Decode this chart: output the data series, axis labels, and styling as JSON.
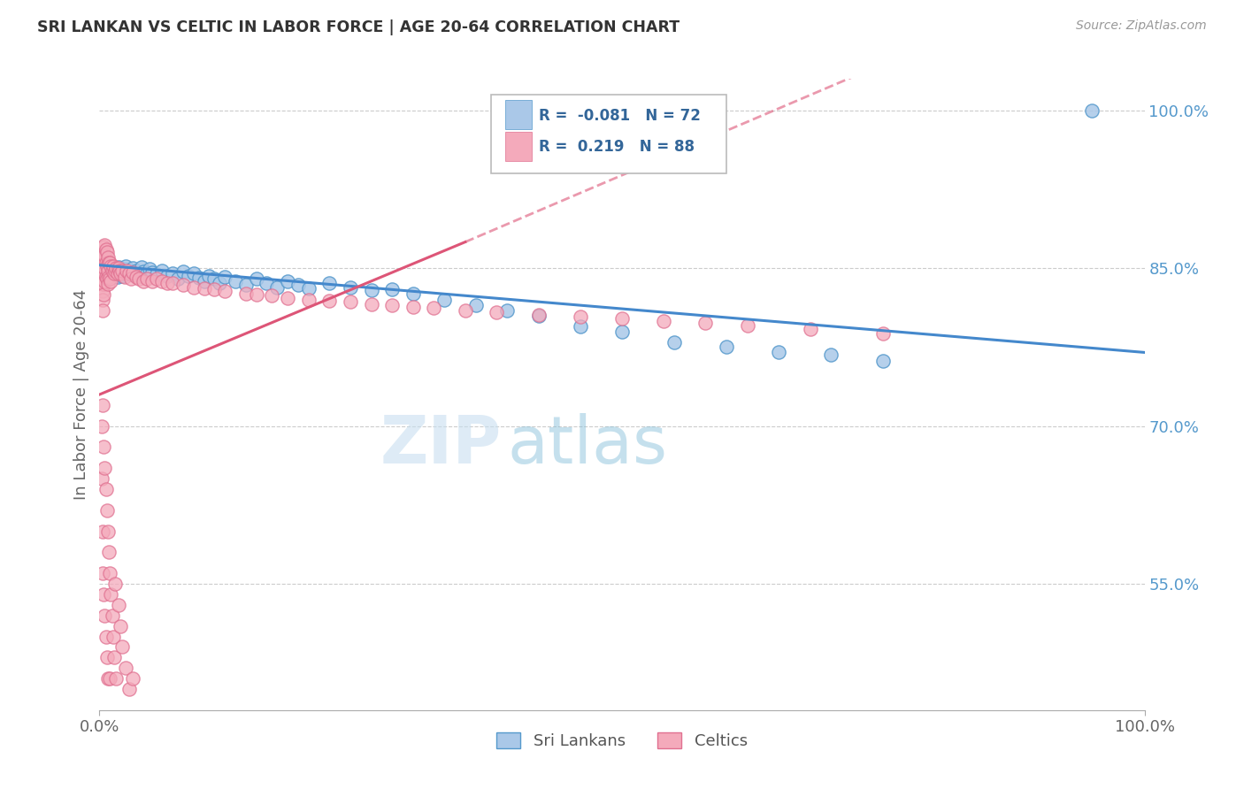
{
  "title": "SRI LANKAN VS CELTIC IN LABOR FORCE | AGE 20-64 CORRELATION CHART",
  "source_text": "Source: ZipAtlas.com",
  "ylabel": "In Labor Force | Age 20-64",
  "xlim": [
    0.0,
    1.0
  ],
  "ylim": [
    0.43,
    1.03
  ],
  "yticks": [
    0.55,
    0.7,
    0.85,
    1.0
  ],
  "ytick_labels": [
    "55.0%",
    "70.0%",
    "85.0%",
    "100.0%"
  ],
  "xticks": [
    0.0,
    1.0
  ],
  "xtick_labels": [
    "0.0%",
    "100.0%"
  ],
  "sri_lankan_R": -0.081,
  "sri_lankan_N": 72,
  "celtic_R": 0.219,
  "celtic_N": 88,
  "legend_label_1": "Sri Lankans",
  "legend_label_2": "Celtics",
  "color_sri_lankan_fill": "#aac8e8",
  "color_sri_lankan_edge": "#5599cc",
  "color_celtic_fill": "#f4aabb",
  "color_celtic_edge": "#e07090",
  "color_sri_line": "#4488cc",
  "color_cel_line": "#dd5577",
  "background_color": "#ffffff",
  "sri_lankan_x": [
    0.003,
    0.003,
    0.004,
    0.004,
    0.005,
    0.005,
    0.006,
    0.007,
    0.008,
    0.009,
    0.01,
    0.01,
    0.011,
    0.012,
    0.013,
    0.015,
    0.016,
    0.017,
    0.018,
    0.02,
    0.022,
    0.024,
    0.025,
    0.027,
    0.03,
    0.032,
    0.035,
    0.038,
    0.04,
    0.042,
    0.045,
    0.048,
    0.05,
    0.055,
    0.06,
    0.065,
    0.07,
    0.075,
    0.08,
    0.085,
    0.09,
    0.095,
    0.1,
    0.105,
    0.11,
    0.115,
    0.12,
    0.13,
    0.14,
    0.15,
    0.16,
    0.17,
    0.18,
    0.19,
    0.2,
    0.22,
    0.24,
    0.26,
    0.28,
    0.3,
    0.33,
    0.36,
    0.39,
    0.42,
    0.46,
    0.5,
    0.55,
    0.6,
    0.65,
    0.7,
    0.75,
    0.95
  ],
  "sri_lankan_y": [
    0.845,
    0.85,
    0.84,
    0.855,
    0.845,
    0.85,
    0.852,
    0.848,
    0.843,
    0.851,
    0.846,
    0.853,
    0.849,
    0.844,
    0.85,
    0.845,
    0.848,
    0.842,
    0.851,
    0.847,
    0.843,
    0.849,
    0.852,
    0.846,
    0.844,
    0.85,
    0.848,
    0.843,
    0.851,
    0.847,
    0.845,
    0.849,
    0.846,
    0.844,
    0.848,
    0.843,
    0.845,
    0.84,
    0.847,
    0.843,
    0.845,
    0.841,
    0.838,
    0.843,
    0.84,
    0.836,
    0.842,
    0.838,
    0.834,
    0.84,
    0.836,
    0.832,
    0.838,
    0.834,
    0.831,
    0.836,
    0.832,
    0.829,
    0.83,
    0.826,
    0.82,
    0.815,
    0.81,
    0.805,
    0.795,
    0.79,
    0.78,
    0.775,
    0.77,
    0.768,
    0.762,
    1.0
  ],
  "celtic_x": [
    0.002,
    0.002,
    0.002,
    0.002,
    0.002,
    0.003,
    0.003,
    0.003,
    0.003,
    0.003,
    0.003,
    0.003,
    0.003,
    0.004,
    0.004,
    0.004,
    0.004,
    0.004,
    0.004,
    0.005,
    0.005,
    0.005,
    0.005,
    0.006,
    0.006,
    0.006,
    0.007,
    0.007,
    0.007,
    0.008,
    0.008,
    0.008,
    0.009,
    0.009,
    0.01,
    0.01,
    0.011,
    0.011,
    0.012,
    0.013,
    0.014,
    0.015,
    0.016,
    0.017,
    0.018,
    0.019,
    0.02,
    0.022,
    0.024,
    0.026,
    0.028,
    0.03,
    0.032,
    0.035,
    0.038,
    0.042,
    0.045,
    0.05,
    0.055,
    0.06,
    0.065,
    0.07,
    0.08,
    0.09,
    0.1,
    0.11,
    0.12,
    0.14,
    0.15,
    0.165,
    0.18,
    0.2,
    0.22,
    0.24,
    0.26,
    0.28,
    0.3,
    0.32,
    0.35,
    0.38,
    0.42,
    0.46,
    0.5,
    0.54,
    0.58,
    0.62,
    0.68,
    0.75
  ],
  "celtic_y": [
    0.86,
    0.855,
    0.85,
    0.845,
    0.84,
    0.865,
    0.858,
    0.85,
    0.842,
    0.835,
    0.828,
    0.82,
    0.81,
    0.87,
    0.862,
    0.854,
    0.845,
    0.835,
    0.825,
    0.872,
    0.862,
    0.85,
    0.838,
    0.868,
    0.855,
    0.842,
    0.865,
    0.852,
    0.84,
    0.86,
    0.848,
    0.835,
    0.855,
    0.842,
    0.855,
    0.84,
    0.852,
    0.838,
    0.848,
    0.852,
    0.845,
    0.848,
    0.85,
    0.845,
    0.85,
    0.848,
    0.845,
    0.848,
    0.842,
    0.848,
    0.845,
    0.84,
    0.846,
    0.842,
    0.84,
    0.838,
    0.84,
    0.838,
    0.84,
    0.838,
    0.836,
    0.836,
    0.834,
    0.832,
    0.831,
    0.83,
    0.828,
    0.826,
    0.825,
    0.824,
    0.822,
    0.82,
    0.819,
    0.818,
    0.816,
    0.815,
    0.813,
    0.812,
    0.81,
    0.808,
    0.806,
    0.804,
    0.802,
    0.8,
    0.798,
    0.796,
    0.792,
    0.788
  ],
  "celtic_low_x": [
    0.002,
    0.002,
    0.003,
    0.003,
    0.003,
    0.004,
    0.004,
    0.005,
    0.005,
    0.006,
    0.006,
    0.007,
    0.007,
    0.008,
    0.008,
    0.009,
    0.01,
    0.01,
    0.011,
    0.012,
    0.013,
    0.014,
    0.015,
    0.016,
    0.018,
    0.02,
    0.022,
    0.025,
    0.028,
    0.032
  ],
  "celtic_low_y": [
    0.7,
    0.65,
    0.72,
    0.6,
    0.56,
    0.68,
    0.54,
    0.66,
    0.52,
    0.64,
    0.5,
    0.62,
    0.48,
    0.6,
    0.46,
    0.58,
    0.56,
    0.46,
    0.54,
    0.52,
    0.5,
    0.48,
    0.55,
    0.46,
    0.53,
    0.51,
    0.49,
    0.47,
    0.45,
    0.46
  ]
}
